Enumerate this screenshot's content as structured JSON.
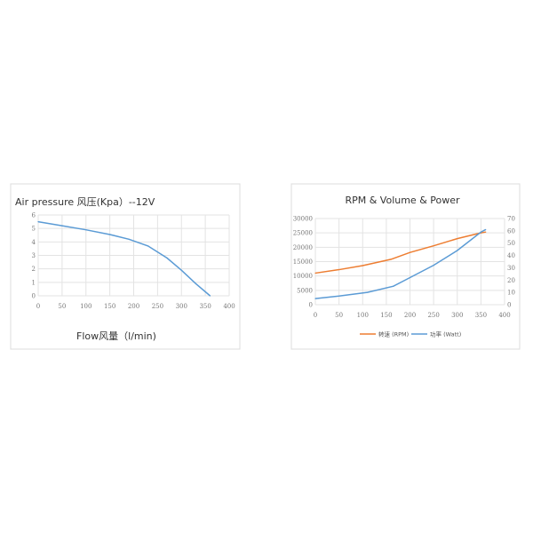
{
  "chart_data": [
    {
      "type": "line",
      "title": "Air pressure 风压(Kpa）--12V",
      "xlabel": "Flow风量（l/min)",
      "ylabel": "",
      "xlim": [
        0,
        400
      ],
      "ylim": [
        0,
        6
      ],
      "xticks": [
        0,
        50,
        100,
        150,
        200,
        250,
        300,
        350,
        400
      ],
      "yticks": [
        0,
        1,
        2,
        3,
        4,
        5,
        6
      ],
      "grid": true,
      "series": [
        {
          "color": "#5b9bd5",
          "x": [
            0,
            50,
            100,
            150,
            190,
            230,
            270,
            300,
            330,
            360
          ],
          "y": [
            5.5,
            5.2,
            4.9,
            4.55,
            4.2,
            3.7,
            2.8,
            1.9,
            0.9,
            0
          ]
        }
      ]
    },
    {
      "type": "line",
      "title": "RPM &  Volume   & Power",
      "xlim": [
        0,
        400
      ],
      "ylim": [
        0,
        30000
      ],
      "y2lim": [
        0,
        70
      ],
      "xticks": [
        0,
        50,
        100,
        150,
        200,
        250,
        300,
        350,
        400
      ],
      "yticks": [
        0,
        5000,
        10000,
        15000,
        20000,
        25000,
        30000
      ],
      "y2ticks": [
        0,
        10,
        20,
        30,
        40,
        50,
        60,
        70
      ],
      "grid": true,
      "legend": "bottom",
      "series": [
        {
          "name": "转速 (RPM)",
          "color": "#ed7d31",
          "axis": "left",
          "x": [
            0,
            50,
            100,
            160,
            200,
            250,
            300,
            350,
            360
          ],
          "y": [
            11000,
            12200,
            13600,
            15800,
            18200,
            20500,
            23000,
            25000,
            25300
          ]
        },
        {
          "name": "功率 (Watt)",
          "color": "#5b9bd5",
          "axis": "right",
          "x": [
            0,
            50,
            110,
            165,
            200,
            250,
            300,
            350,
            360
          ],
          "y": [
            5,
            7,
            10,
            15,
            22,
            32,
            44,
            59,
            61
          ]
        }
      ]
    }
  ]
}
